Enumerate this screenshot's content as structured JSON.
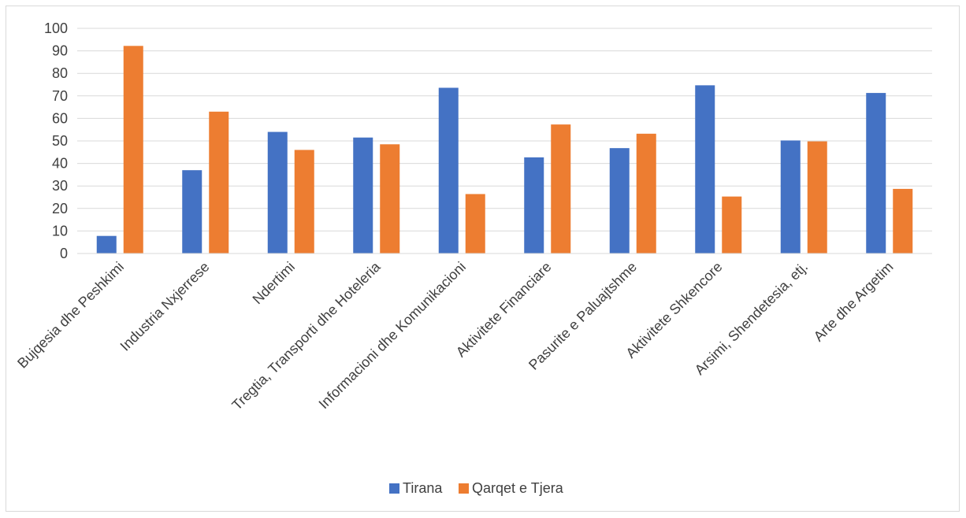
{
  "chart_data": {
    "type": "bar",
    "categories": [
      "Bujqesia dhe Peshkimi",
      "Industria Nxjerrese",
      "Ndertimi",
      "Tregtia, Transporti dhe Hoteleria",
      "Informacioni dhe Komunikacioni",
      "Aktivitete Financiare",
      "Pasurite e Paluajtshme",
      "Aktivitete Shkencore",
      "Arsimi, Shendetesia, etj.",
      "Arte dhe Argetim"
    ],
    "series": [
      {
        "name": "Tirana",
        "color": "#4472c4",
        "values": [
          7.8,
          37,
          54,
          51.5,
          73.6,
          42.7,
          46.8,
          74.7,
          50.2,
          71.3
        ]
      },
      {
        "name": "Qarqet e Tjera",
        "color": "#ed7d31",
        "values": [
          92.2,
          63,
          46,
          48.5,
          26.4,
          57.3,
          53.2,
          25.3,
          49.8,
          28.7
        ]
      }
    ],
    "ylim": [
      0,
      100
    ],
    "yticks": [
      "0",
      "10",
      "20",
      "30",
      "40",
      "50",
      "60",
      "70",
      "80",
      "90",
      "100"
    ],
    "grid": true,
    "legend_position": "bottom"
  }
}
